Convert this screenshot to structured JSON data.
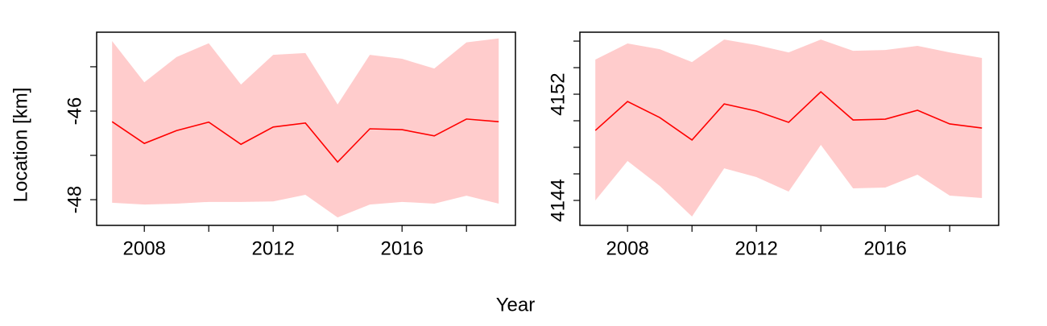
{
  "xlabel": "Year",
  "ylabel": "Location [km]",
  "chart_data": [
    {
      "type": "line",
      "x": [
        2007,
        2008,
        2009,
        2010,
        2011,
        2012,
        2013,
        2014,
        2015,
        2016,
        2017,
        2018,
        2019
      ],
      "series": [
        {
          "color": "#ff0000",
          "band_color": "#ffcccc",
          "values": [
            -46.24,
            -46.73,
            -46.44,
            -46.25,
            -46.75,
            -46.36,
            -46.27,
            -47.15,
            -46.4,
            -46.42,
            -46.56,
            -46.18,
            -46.24
          ],
          "upper": [
            -44.42,
            -45.35,
            -44.78,
            -44.47,
            -45.4,
            -44.73,
            -44.69,
            -45.85,
            -44.73,
            -44.82,
            -45.04,
            -44.45,
            -44.36
          ],
          "lower": [
            -48.07,
            -48.11,
            -48.09,
            -48.05,
            -48.05,
            -48.04,
            -47.89,
            -48.4,
            -48.11,
            -48.05,
            -48.09,
            -47.91,
            -48.09
          ]
        }
      ],
      "xlim": [
        2006.52,
        2019.52
      ],
      "xticks": [
        2008,
        2012,
        2016
      ],
      "xminor": [
        2010,
        2014,
        2018
      ],
      "ylim": [
        -48.58,
        -44.22
      ],
      "yticks": [
        -48,
        -46
      ],
      "yminor": [
        -47,
        -45
      ]
    },
    {
      "type": "line",
      "x": [
        2007,
        2008,
        2009,
        2010,
        2011,
        2012,
        2013,
        2014,
        2015,
        2016,
        2017,
        2018,
        2019
      ],
      "series": [
        {
          "color": "#ff0000",
          "band_color": "#ffcccc",
          "values": [
            4149.27,
            4151.45,
            4150.24,
            4148.55,
            4151.27,
            4150.73,
            4149.88,
            4152.18,
            4150.06,
            4150.12,
            4150.79,
            4149.76,
            4149.45
          ],
          "upper": [
            4154.61,
            4155.82,
            4155.39,
            4154.42,
            4156.12,
            4155.7,
            4155.15,
            4156.12,
            4155.27,
            4155.33,
            4155.64,
            4155.15,
            4154.73
          ],
          "lower": [
            4144.0,
            4146.97,
            4145.09,
            4142.79,
            4146.42,
            4145.76,
            4144.67,
            4148.18,
            4144.91,
            4144.97,
            4145.94,
            4144.36,
            4144.18
          ]
        }
      ],
      "xlim": [
        2006.52,
        2019.52
      ],
      "xticks": [
        2008,
        2012,
        2016
      ],
      "xminor": [
        2010,
        2014,
        2018
      ],
      "ylim": [
        4142.12,
        4156.67
      ],
      "yticks": [
        4144,
        4152
      ],
      "yminor": [
        4146,
        4148,
        4150,
        4154,
        4156
      ]
    }
  ]
}
